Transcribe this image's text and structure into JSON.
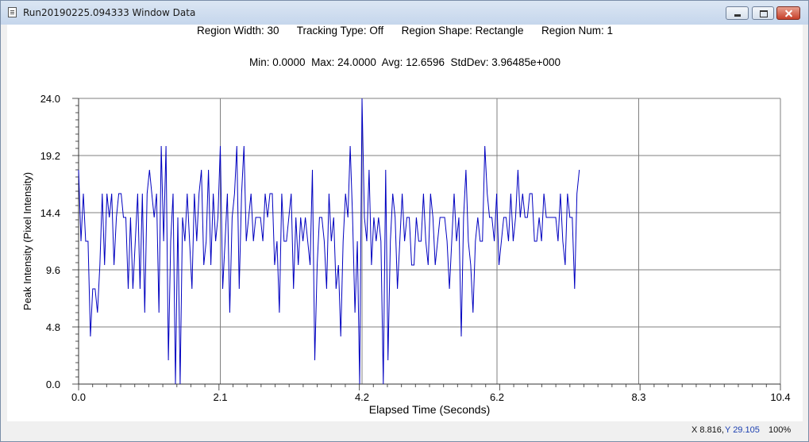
{
  "window": {
    "title": "Run20190225.094333 Window Data",
    "buttons": {
      "minimize": "minimize",
      "maximize": "maximize",
      "close": "close"
    }
  },
  "info": {
    "region_width": "Region Width: 30",
    "tracking_type": "Tracking Type: Off",
    "region_shape": "Region Shape: Rectangle",
    "region_num": "Region Num: 1",
    "min": "Min: 0.0000",
    "max": "Max: 24.0000",
    "avg": "Avg: 12.6596",
    "stddev": "StdDev: 3.96485e+000"
  },
  "status": {
    "x": "X 8.816",
    "y": "Y 29.105",
    "zoom": "100%"
  },
  "chart_data": {
    "type": "line",
    "title": "",
    "xlabel": "Elapsed Time (Seconds)",
    "ylabel": "Peak Intensity (Pixel Intensity)",
    "xlim": [
      0,
      10.4
    ],
    "ylim": [
      0,
      24
    ],
    "x_ticks": [
      "0.0",
      "2.1",
      "4.2",
      "6.2",
      "8.3",
      "10.4"
    ],
    "y_ticks": [
      "0.0",
      "4.8",
      "9.6",
      "14.4",
      "19.2",
      "24.0"
    ],
    "grid": true,
    "colors": {
      "line": "#0000c0",
      "grid": "#7f7f7f"
    },
    "sample_interval": 0.035,
    "series": [
      {
        "name": "",
        "values": [
          18,
          12,
          16,
          12,
          12,
          4,
          8,
          8,
          6,
          10,
          16,
          10,
          16,
          14,
          16,
          10,
          14,
          16,
          16,
          14,
          14,
          8,
          14,
          8,
          12,
          16,
          8,
          16,
          6,
          16,
          18,
          16,
          14,
          16,
          6,
          20,
          12,
          20,
          2,
          12,
          16,
          0,
          14,
          0,
          14,
          12,
          16,
          12,
          8,
          16,
          12,
          16,
          18,
          10,
          12,
          18,
          10,
          16,
          12,
          14,
          20,
          8,
          12,
          16,
          6,
          14,
          16,
          20,
          8,
          16,
          20,
          12,
          14,
          16,
          12,
          14,
          14,
          14,
          12,
          16,
          14,
          16,
          16,
          10,
          12,
          6,
          16,
          12,
          12,
          14,
          16,
          8,
          14,
          10,
          14,
          12,
          14,
          12,
          10,
          18,
          2,
          10,
          14,
          14,
          12,
          8,
          16,
          12,
          14,
          8,
          10,
          4,
          12,
          16,
          14,
          20,
          14,
          6,
          12,
          0,
          24,
          14,
          12,
          18,
          10,
          14,
          12,
          14,
          12,
          0,
          18,
          2,
          12,
          16,
          14,
          8,
          12,
          16,
          12,
          14,
          14,
          10,
          10,
          14,
          12,
          12,
          16,
          12,
          10,
          16,
          14,
          10,
          12,
          14,
          14,
          14,
          12,
          8,
          12,
          16,
          12,
          14,
          4,
          14,
          18,
          12,
          10,
          6,
          12,
          14,
          12,
          12,
          20,
          16,
          14,
          14,
          12,
          16,
          10,
          12,
          14,
          14,
          12,
          16,
          12,
          14,
          18,
          14,
          16,
          14,
          14,
          16,
          16,
          12,
          12,
          14,
          12,
          16,
          14,
          14,
          14,
          14,
          14,
          12,
          16,
          12,
          10,
          16,
          14,
          14,
          8,
          16,
          18
        ]
      }
    ]
  }
}
